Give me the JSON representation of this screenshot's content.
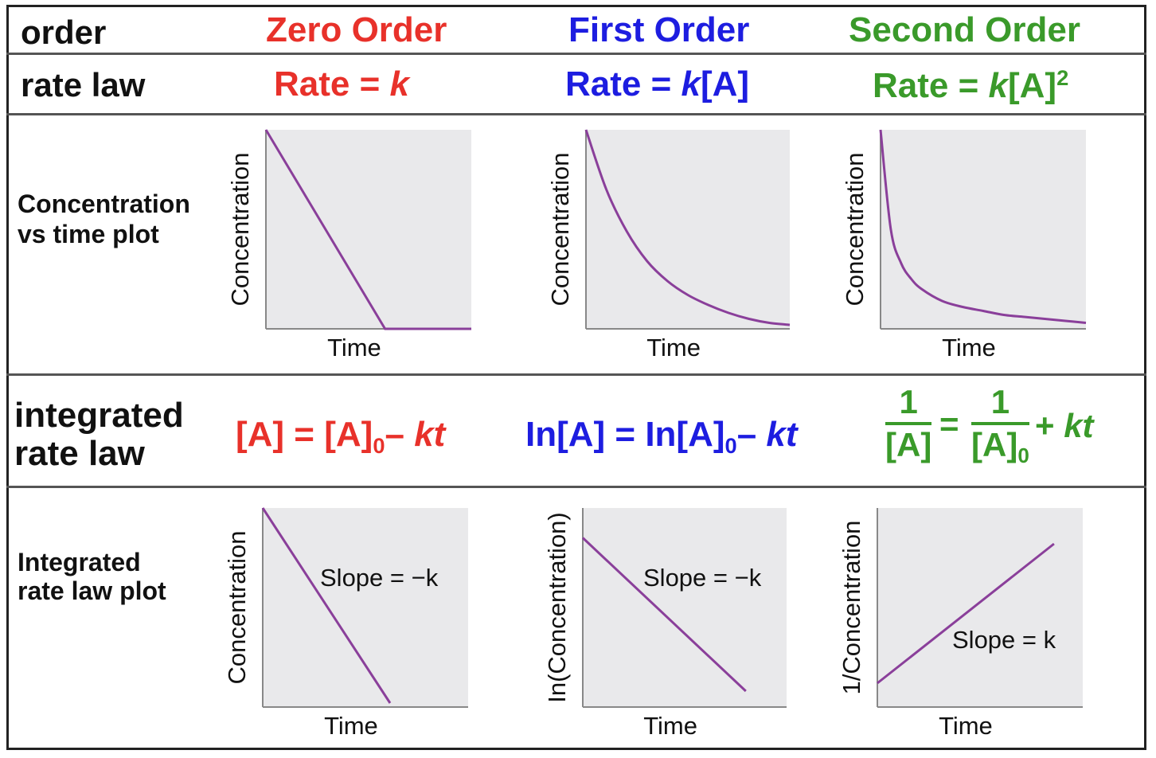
{
  "header": {
    "order_label": "order",
    "rate_law_label": "rate law",
    "conc_plot_label_1": "Concentration",
    "conc_plot_label_2": "vs time plot",
    "integrated_label_1": "integrated",
    "integrated_label_2": "rate law",
    "int_plot_label_1": "Integrated",
    "int_plot_label_2": "rate law plot"
  },
  "orders": [
    {
      "name": "Zero Order",
      "rate_prefix": "Rate = ",
      "rate_k": "k",
      "integrated": {
        "lhs": "[A] = [A]",
        "sub": "0",
        "minus": "–",
        "kt": "kt"
      }
    },
    {
      "name": "First Order",
      "rate_prefix": "Rate = ",
      "rate_k": "k",
      "rate_suffix": "[A]",
      "integrated": {
        "lhs": "In[A] = In[A]",
        "sub": "0",
        "minus": "–",
        "kt": "kt"
      }
    },
    {
      "name": "Second Order",
      "rate_prefix": "Rate = ",
      "rate_k": "k",
      "rate_suffix": "[A]",
      "rate_exp": "2",
      "integrated": {
        "num1": "1",
        "den1": "[A]",
        "eq": "=",
        "num2": "1",
        "den2": "[A]",
        "sub": "0",
        "plus": "+ ",
        "kt": "kt"
      }
    }
  ],
  "colors": {
    "zero": "#e8312a",
    "first": "#1d1de0",
    "second": "#3a9a2a",
    "curve": "#8a3f9a",
    "plot_bg": "#e9e9eb"
  },
  "chart_data": [
    {
      "type": "line",
      "order": "zero",
      "xlabel": "Time",
      "ylabel": "Concentration",
      "note": "",
      "x": [
        0,
        0.58,
        1.0
      ],
      "y": [
        1.0,
        0.0,
        0.0
      ]
    },
    {
      "type": "line",
      "order": "first",
      "xlabel": "Time",
      "ylabel": "Concentration",
      "note": "",
      "x": [
        0,
        0.1,
        0.2,
        0.3,
        0.4,
        0.5,
        0.6,
        0.7,
        0.8,
        0.9,
        1.0
      ],
      "y": [
        1.0,
        0.7,
        0.49,
        0.34,
        0.24,
        0.17,
        0.12,
        0.08,
        0.05,
        0.03,
        0.02
      ]
    },
    {
      "type": "line",
      "order": "second",
      "xlabel": "Time",
      "ylabel": "Concentration",
      "note": "",
      "x": [
        0,
        0.05,
        0.1,
        0.15,
        0.2,
        0.3,
        0.4,
        0.5,
        0.6,
        0.7,
        0.8,
        0.9,
        1.0
      ],
      "y": [
        1.0,
        0.5,
        0.33,
        0.25,
        0.2,
        0.14,
        0.11,
        0.09,
        0.07,
        0.06,
        0.05,
        0.04,
        0.03
      ]
    },
    {
      "type": "line",
      "order": "zero",
      "xlabel": "Time",
      "ylabel": "Concentration",
      "note": "Slope = −k",
      "x": [
        0,
        0.62
      ],
      "y": [
        1.0,
        0.02
      ]
    },
    {
      "type": "line",
      "order": "first",
      "xlabel": "Time",
      "ylabel": "In(Concentration)",
      "note": "Slope = −k",
      "x": [
        0,
        0.8
      ],
      "y": [
        0.85,
        0.08
      ]
    },
    {
      "type": "line",
      "order": "second",
      "xlabel": "Time",
      "ylabel": "1/Concentration",
      "note": "Slope = k",
      "x": [
        0,
        0.86
      ],
      "y": [
        0.12,
        0.82
      ]
    }
  ]
}
